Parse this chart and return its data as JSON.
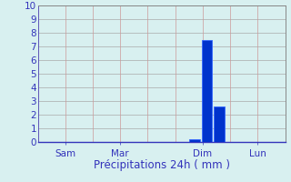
{
  "title": "",
  "xlabel": "Précipitations 24h ( mm )",
  "ylabel": "",
  "ylim": [
    0,
    10
  ],
  "yticks": [
    0,
    1,
    2,
    3,
    4,
    5,
    6,
    7,
    8,
    9,
    10
  ],
  "background_color": "#d8f0f0",
  "bar_color": "#0033cc",
  "bar_edge_color": "#3366ff",
  "days": [
    "Sam",
    "Mar",
    "Dim",
    "Lun"
  ],
  "day_positions": [
    1,
    3,
    6,
    8
  ],
  "num_days": 9,
  "xlim": [
    0,
    9
  ],
  "bar_positions": [
    5.7,
    6.15,
    6.6,
    8.1
  ],
  "bar_values": [
    0.2,
    7.5,
    2.6,
    0.0
  ],
  "bar_width": 0.38,
  "grid_color_h": "#aaaaaa",
  "grid_color_v": "#cc9999",
  "tick_label_color": "#3333bb",
  "xlabel_color": "#3333bb",
  "xlabel_fontsize": 8.5,
  "tick_fontsize": 7.5,
  "ytick_label_color": "#3333bb"
}
